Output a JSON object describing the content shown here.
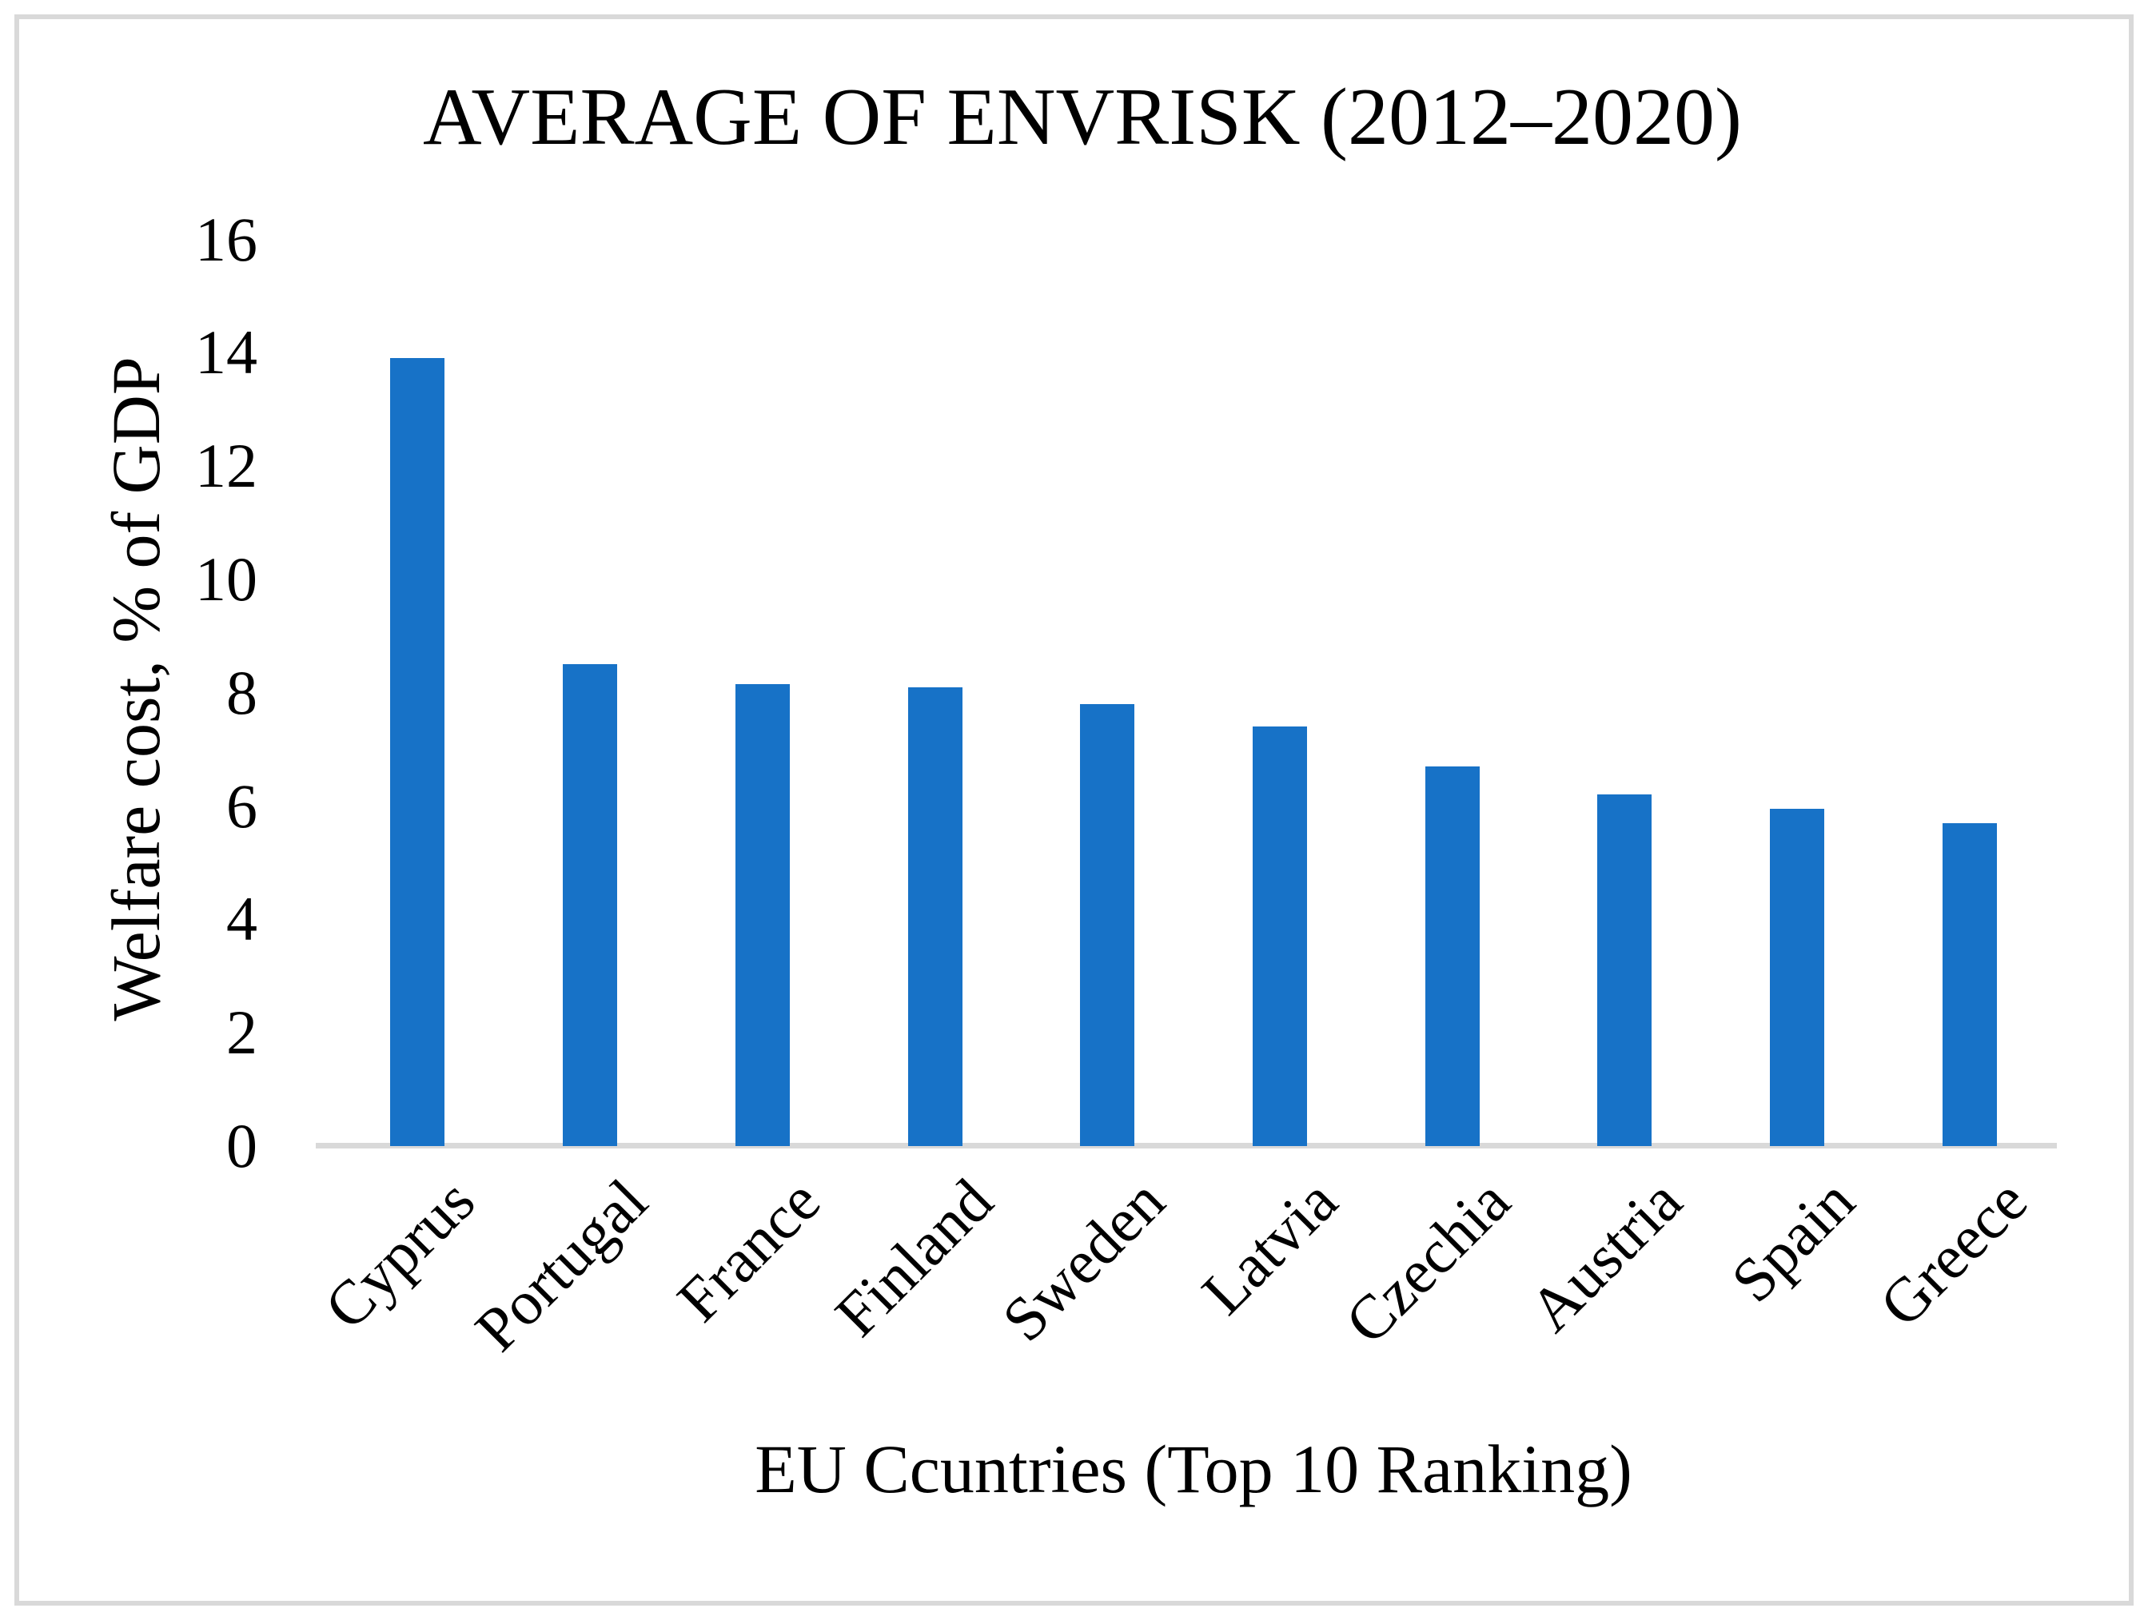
{
  "chart_data": {
    "type": "bar",
    "title": "AVERAGE OF ENVRISK (2012–2020)",
    "xlabel": "EU Ccuntries (Top 10 Ranking)",
    "ylabel": "Welfare cost, % of GDP",
    "categories": [
      "Cyprus",
      "Portugal",
      "France",
      "Finland",
      "Sweden",
      "Latvia",
      "Czechia",
      "Austria",
      "Spain",
      "Greece"
    ],
    "values": [
      13.9,
      8.5,
      8.15,
      8.1,
      7.8,
      7.4,
      6.7,
      6.2,
      5.95,
      5.7
    ],
    "ylim": [
      0,
      16
    ],
    "yticks": [
      0,
      2,
      4,
      6,
      8,
      10,
      12,
      14,
      16
    ],
    "grid": false,
    "legend_position": "none",
    "category_label_rotation_deg": 45,
    "bar_color": "#1772C7",
    "axis_line_color": "#D9D9D9",
    "border_color": "#D9D9D9",
    "text_color": "#000000"
  }
}
